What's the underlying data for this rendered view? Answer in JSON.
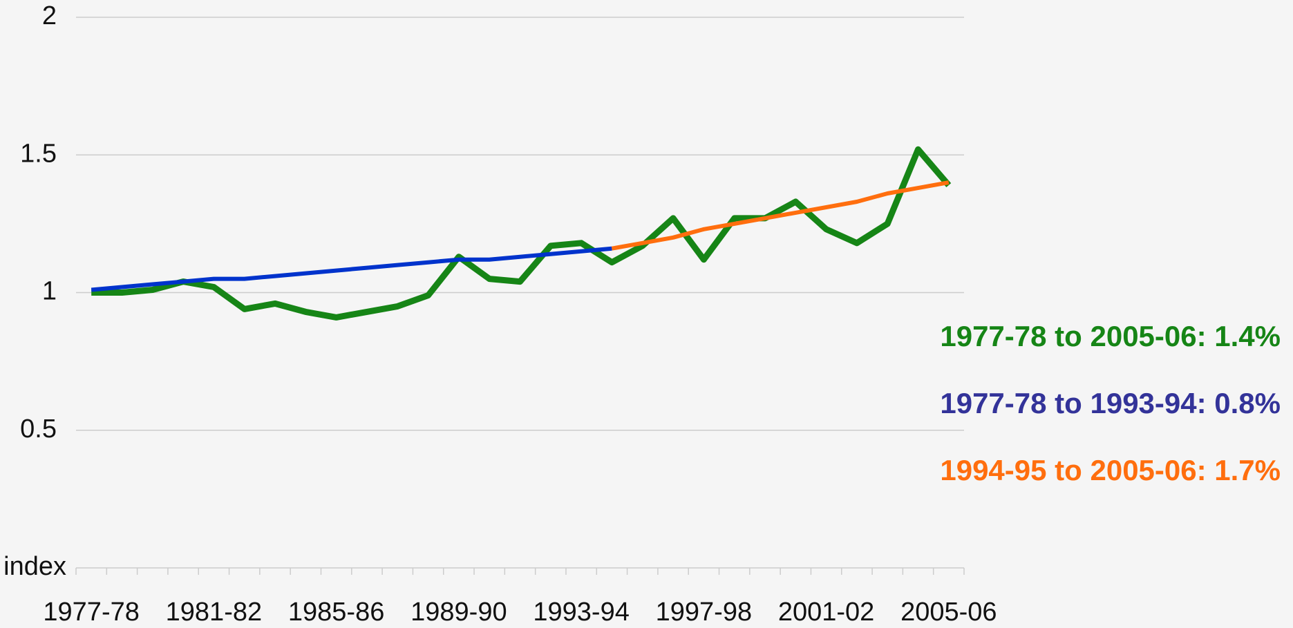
{
  "chart_data": {
    "type": "line",
    "y_label": "index",
    "categories": [
      "1977-78",
      null,
      null,
      null,
      "1981-82",
      null,
      null,
      null,
      "1985-86",
      null,
      null,
      null,
      "1989-90",
      null,
      null,
      null,
      "1993-94",
      null,
      null,
      null,
      "1997-98",
      null,
      null,
      null,
      "2001-02",
      null,
      null,
      null,
      "2005-06"
    ],
    "series": [
      {
        "color": "#168516",
        "width": 9,
        "values": [
          1.0,
          1.0,
          1.01,
          1.04,
          1.02,
          0.94,
          0.96,
          0.93,
          0.91,
          0.93,
          0.95,
          0.99,
          1.13,
          1.05,
          1.04,
          1.17,
          1.18,
          1.11,
          1.17,
          1.27,
          1.12,
          1.27,
          1.27,
          1.33,
          1.23,
          1.18,
          1.25,
          1.52,
          1.39
        ]
      },
      {
        "color": "#0033cc",
        "width": 6,
        "values": [
          1.01,
          1.02,
          1.03,
          1.04,
          1.05,
          1.05,
          1.06,
          1.07,
          1.08,
          1.09,
          1.1,
          1.11,
          1.12,
          1.12,
          1.13,
          1.14,
          1.15,
          1.16,
          null,
          null,
          null,
          null,
          null,
          null,
          null,
          null,
          null,
          null,
          null
        ]
      },
      {
        "color": "#ff6e0e",
        "width": 6,
        "values": [
          null,
          null,
          null,
          null,
          null,
          null,
          null,
          null,
          null,
          null,
          null,
          null,
          null,
          null,
          null,
          null,
          null,
          1.16,
          1.18,
          1.2,
          1.23,
          1.25,
          1.27,
          1.29,
          1.31,
          1.33,
          1.36,
          1.38,
          1.4
        ]
      }
    ],
    "annotations": [
      {
        "text": "1977-78 to 2005-06: 1.4%",
        "color": "#168516"
      },
      {
        "text": "1977-78 to 1993-94: 0.8%",
        "color": "#333399"
      },
      {
        "text": "1994-95 to 2005-06: 1.7%",
        "color": "#ff6e0e"
      }
    ],
    "ylim": [
      0,
      2
    ],
    "yticks": [
      0.5,
      1,
      1.5,
      2
    ],
    "grid": true
  }
}
